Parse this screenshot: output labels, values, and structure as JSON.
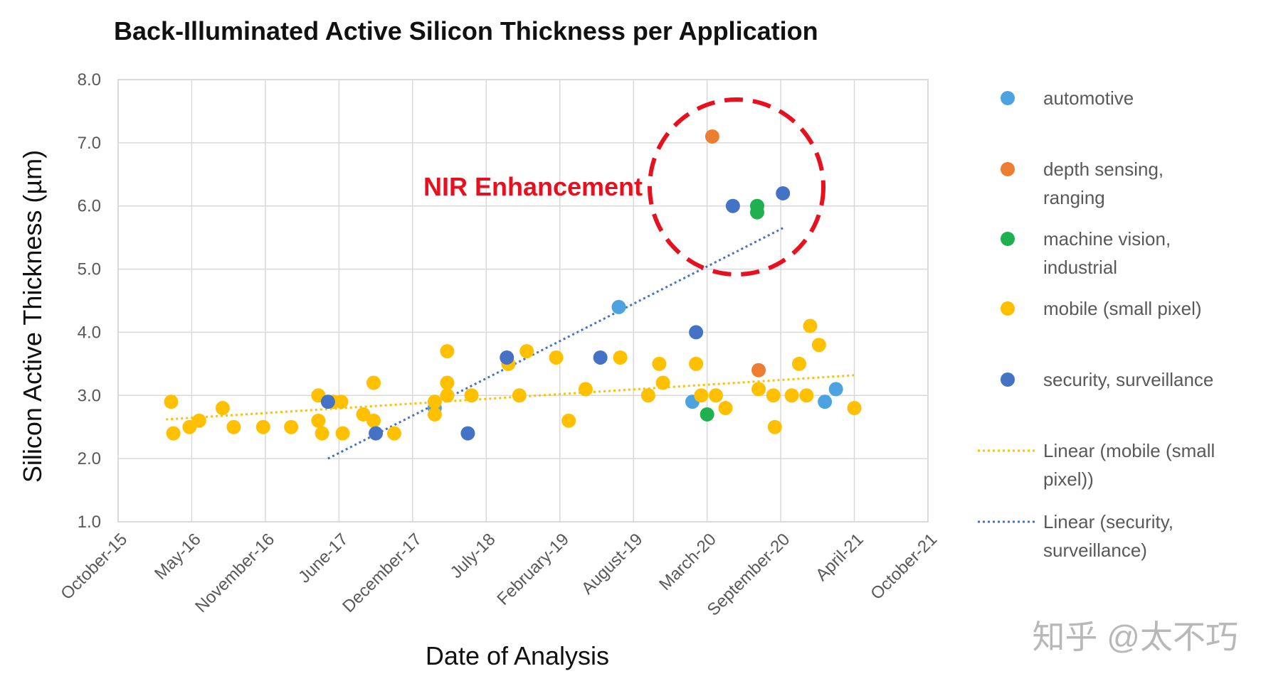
{
  "chart_data": {
    "type": "scatter",
    "title": "Back-Illuminated Active Silicon Thickness per Application",
    "xlabel": "Date of Analysis",
    "ylabel": "Silicon Active Thickness (µm)",
    "x_ticks": [
      "October-15",
      "May-16",
      "November-16",
      "June-17",
      "December-17",
      "July-18",
      "February-19",
      "August-19",
      "March-20",
      "September-20",
      "April-21",
      "October-21"
    ],
    "y_ticks": [
      "1.0",
      "2.0",
      "3.0",
      "4.0",
      "5.0",
      "6.0",
      "7.0",
      "8.0"
    ],
    "xlim": [
      0,
      11
    ],
    "ylim": [
      1.0,
      8.0
    ],
    "grid": true,
    "legend_position": "right",
    "series": [
      {
        "name": "automotive",
        "color": "#4da3df",
        "points": [
          [
            4.3,
            2.8
          ],
          [
            6.8,
            4.4
          ],
          [
            7.8,
            2.9
          ],
          [
            9.6,
            2.9
          ],
          [
            9.75,
            3.1
          ]
        ]
      },
      {
        "name": "depth sensing, ranging",
        "color": "#ed7d31",
        "points": [
          [
            8.07,
            7.1
          ],
          [
            8.7,
            3.4
          ]
        ]
      },
      {
        "name": "machine vision, industrial",
        "color": "#1fb050",
        "points": [
          [
            8.68,
            5.9
          ],
          [
            8.68,
            6.0
          ],
          [
            8.0,
            2.7
          ]
        ]
      },
      {
        "name": "mobile (small pixel)",
        "color": "#ffc000",
        "points": [
          [
            0.72,
            2.9
          ],
          [
            0.75,
            2.4
          ],
          [
            0.97,
            2.5
          ],
          [
            1.1,
            2.6
          ],
          [
            1.42,
            2.8
          ],
          [
            1.57,
            2.5
          ],
          [
            1.97,
            2.5
          ],
          [
            2.35,
            2.5
          ],
          [
            2.72,
            3.0
          ],
          [
            2.72,
            2.6
          ],
          [
            2.77,
            2.4
          ],
          [
            2.92,
            2.9
          ],
          [
            3.03,
            2.9
          ],
          [
            3.05,
            2.4
          ],
          [
            3.33,
            2.7
          ],
          [
            3.47,
            2.6
          ],
          [
            3.47,
            3.2
          ],
          [
            3.75,
            2.4
          ],
          [
            4.3,
            2.7
          ],
          [
            4.3,
            2.9
          ],
          [
            4.47,
            3.7
          ],
          [
            4.47,
            3.2
          ],
          [
            4.47,
            3.0
          ],
          [
            4.8,
            3.0
          ],
          [
            5.3,
            3.5
          ],
          [
            5.45,
            3.0
          ],
          [
            5.55,
            3.7
          ],
          [
            5.95,
            3.6
          ],
          [
            6.12,
            2.6
          ],
          [
            6.35,
            3.1
          ],
          [
            6.82,
            3.6
          ],
          [
            7.2,
            3.0
          ],
          [
            7.35,
            3.5
          ],
          [
            7.4,
            3.2
          ],
          [
            7.85,
            3.5
          ],
          [
            7.92,
            3.0
          ],
          [
            8.12,
            3.0
          ],
          [
            8.25,
            2.8
          ],
          [
            8.7,
            3.1
          ],
          [
            8.9,
            3.0
          ],
          [
            8.92,
            2.5
          ],
          [
            9.15,
            3.0
          ],
          [
            9.25,
            3.5
          ],
          [
            9.35,
            3.0
          ],
          [
            9.4,
            4.1
          ],
          [
            9.52,
            3.8
          ],
          [
            10.0,
            2.8
          ]
        ]
      },
      {
        "name": "security, surveillance",
        "color": "#4472c4",
        "points": [
          [
            2.85,
            2.9
          ],
          [
            3.5,
            2.4
          ],
          [
            4.75,
            2.4
          ],
          [
            5.28,
            3.6
          ],
          [
            6.55,
            3.6
          ],
          [
            7.85,
            4.0
          ],
          [
            8.35,
            6.0
          ],
          [
            9.03,
            6.2
          ]
        ]
      }
    ],
    "trendlines": [
      {
        "name": "Linear (mobile (small pixel))",
        "color": "#ffc000",
        "x": [
          0.65,
          10.0
        ],
        "y": [
          2.62,
          3.32
        ]
      },
      {
        "name": "Linear (security, surveillance)",
        "color": "#4472c4",
        "x": [
          2.85,
          9.03
        ],
        "y": [
          2.0,
          5.65
        ]
      }
    ],
    "legend": [
      {
        "label_lines": [
          "automotive"
        ],
        "color": "#4da3df",
        "kind": "marker"
      },
      {
        "label_lines": [
          "depth sensing,",
          "ranging"
        ],
        "color": "#ed7d31",
        "kind": "marker"
      },
      {
        "label_lines": [
          "machine vision,",
          "industrial"
        ],
        "color": "#1fb050",
        "kind": "marker"
      },
      {
        "label_lines": [
          "mobile (small pixel)"
        ],
        "color": "#ffc000",
        "kind": "marker"
      },
      {
        "label_lines": [
          "security, surveillance"
        ],
        "color": "#4472c4",
        "kind": "marker"
      },
      {
        "label_lines": [
          "Linear (mobile (small",
          "pixel))"
        ],
        "color": "#ffc000",
        "kind": "line"
      },
      {
        "label_lines": [
          "Linear (security,",
          "surveillance)"
        ],
        "color": "#4472c4",
        "kind": "line"
      }
    ],
    "annotations": [
      {
        "text": "NIR Enhancement",
        "color": "#e8101e",
        "highlight_center": [
          8.4,
          6.3
        ],
        "kind": "dashed-circle"
      }
    ]
  },
  "watermark": "知乎 @太不巧"
}
